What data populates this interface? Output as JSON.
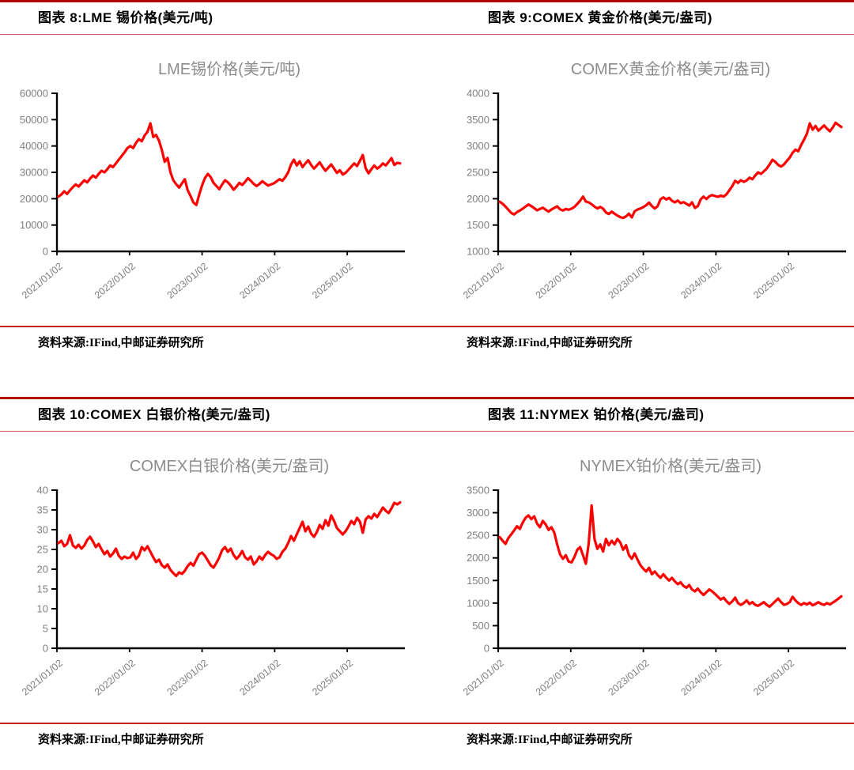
{
  "colors": {
    "accent_red": "#B20000",
    "rule_light_red": "#C85C5C",
    "source_rule_red": "#CC2222",
    "series_red": "#FF0000",
    "axis_black": "#000000",
    "tick_gray": "#7F7F7F",
    "title_gray": "#8C8C8C"
  },
  "figures": [
    {
      "header": "图表 8:LME 锡价格(美元/吨)",
      "source": "资料来源:IFind,中邮证券研究所"
    },
    {
      "header": "图表 9:COMEX 黄金价格(美元/盎司)",
      "source": "资料来源:IFind,中邮证券研究所"
    },
    {
      "header": "图表 10:COMEX 白银价格(美元/盎司)",
      "source": "资料来源:IFind,中邮证券研究所"
    },
    {
      "header": "图表 11:NYMEX 铂价格(美元/盎司)",
      "source": "资料来源:IFind,中邮证券研究所"
    }
  ],
  "chart_data": [
    {
      "type": "line",
      "title": "LME锡价格(美元/吨)",
      "ylabel": "美元/吨",
      "ylim": [
        0,
        60000
      ],
      "yticks": [
        0,
        10000,
        20000,
        30000,
        40000,
        50000,
        60000
      ],
      "x_tick_labels": [
        "2021/01/02",
        "2022/01/02",
        "2023/01/02",
        "2024/01/02",
        "2025/01/02"
      ],
      "x_tick_positions": [
        0,
        0.2105,
        0.4211,
        0.6316,
        0.8421
      ],
      "grid": false,
      "legend": "none",
      "line_color": "#FF0000",
      "values": [
        20800,
        21600,
        22800,
        21800,
        23200,
        24400,
        25400,
        24600,
        25800,
        27000,
        26200,
        27600,
        28800,
        28000,
        29400,
        30600,
        30000,
        31200,
        32600,
        32000,
        33400,
        34800,
        36200,
        37600,
        39200,
        40000,
        39200,
        41200,
        42600,
        41800,
        44000,
        45400,
        48600,
        43400,
        44200,
        42000,
        38500,
        34000,
        35500,
        30000,
        27000,
        25500,
        24200,
        25800,
        27400,
        23200,
        21000,
        18500,
        17600,
        21500,
        25000,
        27800,
        29400,
        28200,
        26000,
        24800,
        23600,
        25400,
        27000,
        26200,
        25000,
        23400,
        24600,
        26000,
        25200,
        26400,
        27800,
        26800,
        25600,
        24800,
        25600,
        26600,
        25800,
        25000,
        25400,
        25800,
        26600,
        27400,
        26800,
        28200,
        30000,
        33000,
        34800,
        32600,
        34200,
        32000,
        33400,
        34600,
        32800,
        31400,
        32600,
        33800,
        32000,
        30600,
        31800,
        33000,
        31400,
        29800,
        30800,
        29200,
        29800,
        31000,
        32200,
        33400,
        32400,
        34400,
        36600,
        31600,
        29600,
        31200,
        32600,
        31400,
        32200,
        33400,
        32600,
        34000,
        35400,
        32800,
        33600,
        33400
      ]
    },
    {
      "type": "line",
      "title": "COMEX黄金价格(美元/盎司)",
      "ylabel": "美元/盎司",
      "ylim": [
        1000,
        4000
      ],
      "yticks": [
        1000,
        1500,
        2000,
        2500,
        3000,
        3500,
        4000
      ],
      "x_tick_labels": [
        "2021/01/02",
        "2022/01/02",
        "2023/01/02",
        "2024/01/02",
        "2025/01/02"
      ],
      "x_tick_positions": [
        0,
        0.2105,
        0.4211,
        0.6316,
        0.8421
      ],
      "grid": false,
      "legend": "none",
      "line_color": "#FF0000",
      "values": [
        1940,
        1905,
        1850,
        1790,
        1730,
        1700,
        1745,
        1775,
        1810,
        1850,
        1890,
        1860,
        1820,
        1780,
        1805,
        1830,
        1790,
        1755,
        1795,
        1825,
        1855,
        1800,
        1775,
        1805,
        1790,
        1810,
        1845,
        1900,
        1960,
        2040,
        1945,
        1930,
        1895,
        1850,
        1815,
        1845,
        1810,
        1740,
        1710,
        1755,
        1715,
        1680,
        1650,
        1635,
        1665,
        1715,
        1645,
        1760,
        1795,
        1815,
        1840,
        1875,
        1925,
        1860,
        1815,
        1860,
        1990,
        2025,
        1985,
        2015,
        1960,
        1930,
        1965,
        1915,
        1935,
        1905,
        1870,
        1930,
        1825,
        1860,
        1985,
        2040,
        1995,
        2045,
        2070,
        2050,
        2035,
        2060,
        2040,
        2085,
        2160,
        2240,
        2340,
        2300,
        2350,
        2320,
        2345,
        2400,
        2370,
        2440,
        2500,
        2470,
        2520,
        2570,
        2650,
        2740,
        2700,
        2640,
        2610,
        2650,
        2715,
        2780,
        2870,
        2930,
        2900,
        3020,
        3120,
        3230,
        3430,
        3310,
        3380,
        3290,
        3340,
        3390,
        3330,
        3280,
        3350,
        3440,
        3400,
        3360
      ]
    },
    {
      "type": "line",
      "title": "COMEX白银价格(美元/盎司)",
      "ylabel": "美元/盎司",
      "ylim": [
        0,
        40
      ],
      "yticks": [
        0,
        5,
        10,
        15,
        20,
        25,
        30,
        35,
        40
      ],
      "x_tick_labels": [
        "2021/01/02",
        "2022/01/02",
        "2023/01/02",
        "2024/01/02",
        "2025/01/02"
      ],
      "x_tick_positions": [
        0,
        0.2105,
        0.4211,
        0.6316,
        0.8421
      ],
      "grid": false,
      "legend": "none",
      "line_color": "#FF0000",
      "values": [
        26.6,
        27.2,
        25.8,
        26.4,
        28.6,
        26.0,
        25.4,
        26.2,
        25.2,
        26.0,
        27.4,
        28.2,
        27.0,
        25.6,
        26.4,
        25.0,
        23.8,
        24.6,
        23.2,
        24.0,
        25.2,
        23.4,
        22.6,
        23.2,
        22.8,
        23.0,
        24.2,
        22.6,
        23.4,
        25.6,
        24.8,
        25.8,
        24.4,
        23.0,
        21.8,
        22.4,
        21.0,
        20.4,
        21.2,
        19.8,
        19.0,
        18.3,
        19.2,
        18.8,
        19.6,
        20.8,
        21.6,
        20.9,
        22.4,
        23.8,
        24.2,
        23.4,
        22.2,
        21.0,
        20.4,
        21.6,
        23.0,
        24.8,
        25.6,
        24.4,
        25.2,
        23.6,
        22.6,
        23.4,
        24.6,
        23.0,
        22.4,
        23.2,
        21.2,
        22.0,
        23.2,
        22.4,
        23.6,
        24.4,
        23.8,
        23.4,
        22.6,
        23.0,
        24.4,
        25.2,
        26.6,
        28.4,
        27.2,
        28.8,
        30.4,
        32.0,
        29.6,
        30.8,
        29.0,
        28.2,
        29.4,
        31.2,
        30.2,
        32.4,
        31.0,
        33.6,
        32.2,
        30.4,
        29.6,
        28.8,
        29.6,
        30.8,
        32.2,
        31.4,
        33.0,
        32.0,
        29.2,
        32.6,
        33.4,
        32.8,
        34.0,
        33.2,
        34.4,
        35.6,
        34.8,
        34.2,
        35.4,
        36.8,
        36.4,
        36.9
      ]
    },
    {
      "type": "line",
      "title": "NYMEX铂价格(美元/盎司)",
      "ylabel": "美元/盎司",
      "ylim": [
        0,
        3500
      ],
      "yticks": [
        0,
        500,
        1000,
        1500,
        2000,
        2500,
        3000,
        3500
      ],
      "x_tick_labels": [
        "2021/01/02",
        "2022/01/02",
        "2023/01/02",
        "2024/01/02",
        "2025/01/02"
      ],
      "x_tick_positions": [
        0,
        0.2105,
        0.4211,
        0.6316,
        0.8421
      ],
      "grid": false,
      "legend": "none",
      "line_color": "#FF0000",
      "values": [
        2460,
        2380,
        2310,
        2440,
        2520,
        2610,
        2700,
        2640,
        2780,
        2890,
        2940,
        2860,
        2920,
        2760,
        2680,
        2820,
        2740,
        2620,
        2680,
        2560,
        2300,
        2080,
        1980,
        2060,
        1920,
        1900,
        2020,
        2180,
        2240,
        2060,
        1870,
        2320,
        3160,
        2420,
        2200,
        2300,
        2140,
        2420,
        2280,
        2380,
        2300,
        2420,
        2340,
        2180,
        2280,
        2060,
        1980,
        2100,
        1960,
        1840,
        1760,
        1700,
        1780,
        1640,
        1700,
        1620,
        1560,
        1640,
        1560,
        1500,
        1560,
        1480,
        1420,
        1460,
        1380,
        1340,
        1400,
        1300,
        1260,
        1320,
        1240,
        1180,
        1240,
        1300,
        1260,
        1200,
        1140,
        1080,
        1120,
        1040,
        980,
        1040,
        1120,
        1000,
        960,
        1000,
        1060,
        980,
        1020,
        960,
        940,
        980,
        1020,
        960,
        920,
        980,
        1040,
        1100,
        1020,
        960,
        980,
        1020,
        1140,
        1060,
        1000,
        960,
        1000,
        970,
        1010,
        950,
        980,
        1020,
        980,
        960,
        1000,
        970,
        1010,
        1050,
        1100,
        1150
      ]
    }
  ]
}
